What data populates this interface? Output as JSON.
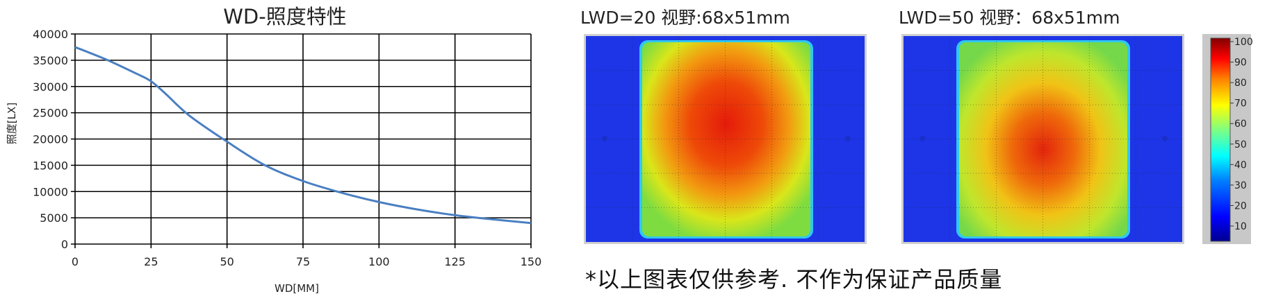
{
  "chart_data": [
    {
      "type": "line",
      "title": "WD-照度特性",
      "xlabel": "WD[MM]",
      "ylabel": "照度[LX]",
      "xlim": [
        0,
        150
      ],
      "ylim": [
        0,
        40000
      ],
      "x_ticks": [
        "0",
        "25",
        "50",
        "75",
        "100",
        "125",
        "150"
      ],
      "y_ticks": [
        "0",
        "5000",
        "10000",
        "15000",
        "20000",
        "25000",
        "30000",
        "35000",
        "40000"
      ],
      "grid": true,
      "series": [
        {
          "color": "#4a7fc1",
          "x": [
            0,
            10,
            20,
            25,
            30,
            37.5,
            50,
            62.5,
            75,
            87.5,
            100,
            112.5,
            125,
            137.5,
            150
          ],
          "y": [
            37500,
            35200,
            32500,
            31000,
            28500,
            24500,
            19500,
            15000,
            12000,
            9800,
            8000,
            6600,
            5500,
            4700,
            4000
          ]
        }
      ]
    },
    {
      "type": "heatmap",
      "title": "LWD=20   视野:68x51mm",
      "colors": {
        "background": "#1d35e6",
        "hot": "#e41b0a"
      }
    },
    {
      "type": "heatmap",
      "title": "LWD=50   视野：68x51mm",
      "colors": {
        "background": "#1d35e6",
        "hot": "#e41b0a"
      }
    }
  ],
  "colorbar": {
    "ticks": [
      "100",
      "90",
      "80",
      "70",
      "60",
      "50",
      "40",
      "30",
      "20",
      "10"
    ],
    "colors": [
      "#00008f",
      "#0000ff",
      "#0080ff",
      "#00ffff",
      "#80ff80",
      "#ffff00",
      "#ff8000",
      "#ff0000",
      "#800000"
    ]
  },
  "footer": {
    "note": "*以上图表仅供参考. 不作为保证产品质量"
  }
}
